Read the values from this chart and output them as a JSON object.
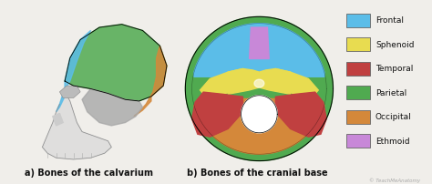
{
  "background_color": "#f0eeea",
  "legend_items": [
    {
      "label": "Frontal",
      "color": "#5bbde8"
    },
    {
      "label": "Sphenoid",
      "color": "#e8dc50"
    },
    {
      "label": "Temporal",
      "color": "#c04040"
    },
    {
      "label": "Parietal",
      "color": "#50aa50"
    },
    {
      "label": "Occipital",
      "color": "#d4883a"
    },
    {
      "label": "Ethmoid",
      "color": "#c888d8"
    }
  ],
  "caption_a": "a) Bones of the calvarium",
  "caption_b": "b) Bones of the cranial base",
  "caption_fontsize": 7.0,
  "legend_fontsize": 6.5,
  "watermark": "© TeachMeAnatomy",
  "fig_width": 4.74,
  "fig_height": 2.03,
  "dpi": 100
}
